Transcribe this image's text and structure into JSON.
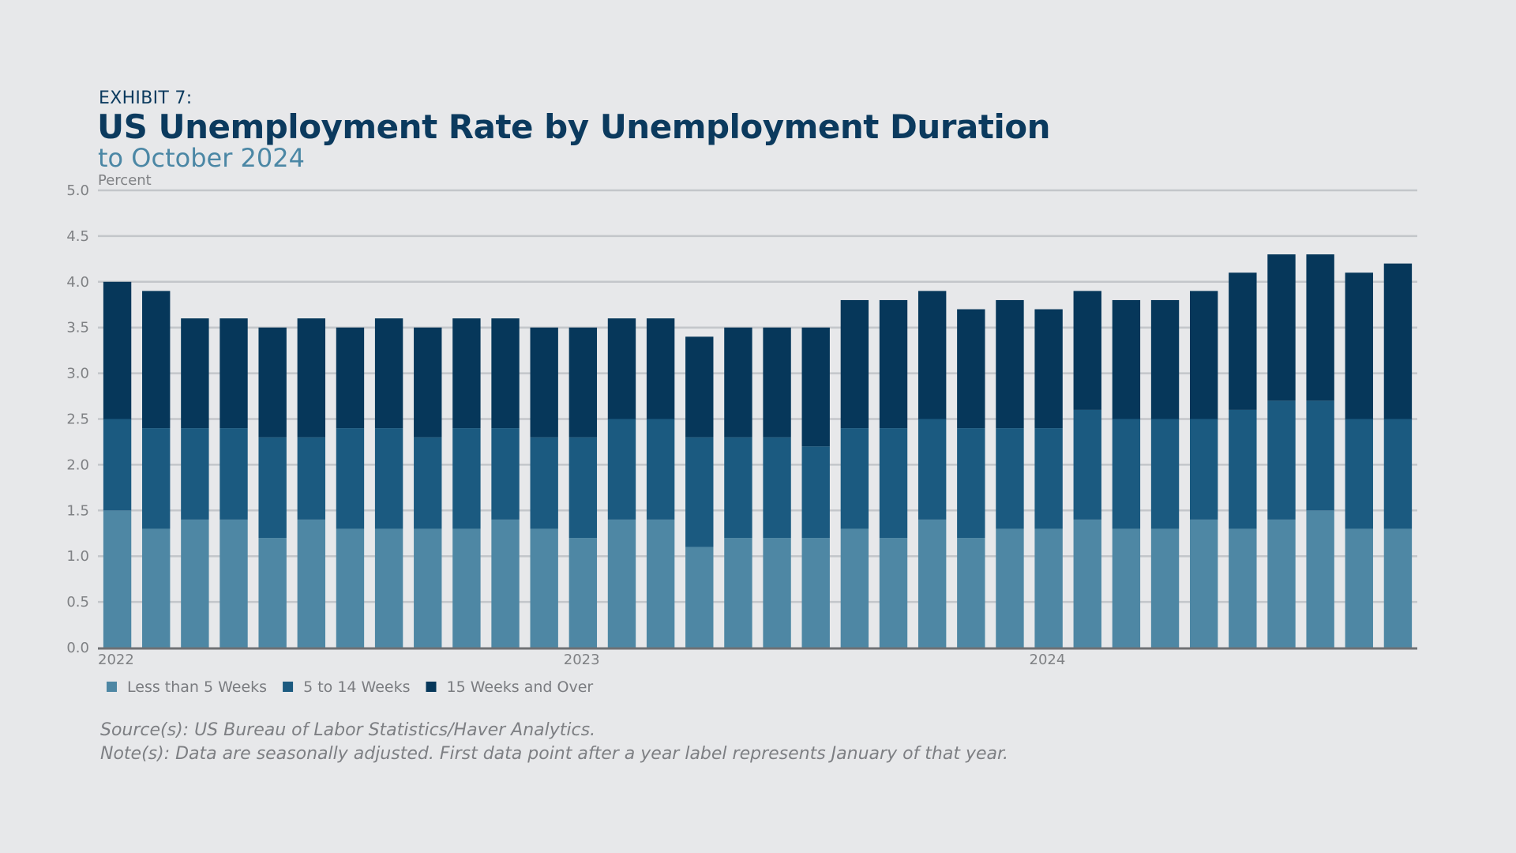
{
  "header": {
    "exhibit": "EXHIBIT 7:",
    "title": "US Unemployment Rate by Unemployment Duration",
    "subtitle": "to October 2024"
  },
  "footer": {
    "source": "Source(s): US Bureau of Labor Statistics/Haver Analytics.",
    "note": "Note(s): Data are seasonally adjusted. First data point after a year label represents January of that year."
  },
  "colors": {
    "background": "#e7e8ea",
    "less_than_5": "#4e87a4",
    "five_to_14": "#1b5a80",
    "fifteen_plus": "#06375a",
    "gridline": "#c3c6ca",
    "axis": "#6f7174"
  },
  "chart_data": {
    "type": "bar",
    "stacked": true,
    "ylabel": "Percent",
    "ylim": [
      0,
      5
    ],
    "yticks": [
      "0.0",
      "0.5",
      "1.0",
      "1.5",
      "2.0",
      "2.5",
      "3.0",
      "3.5",
      "4.0",
      "4.5",
      "5.0"
    ],
    "x_labels": [
      {
        "label": "2022",
        "index": 0
      },
      {
        "label": "2023",
        "index": 12
      },
      {
        "label": "2024",
        "index": 24
      }
    ],
    "categories": [
      "2022-01",
      "2022-02",
      "2022-03",
      "2022-04",
      "2022-05",
      "2022-06",
      "2022-07",
      "2022-08",
      "2022-09",
      "2022-10",
      "2022-11",
      "2022-12",
      "2023-01",
      "2023-02",
      "2023-03",
      "2023-04",
      "2023-05",
      "2023-06",
      "2023-07",
      "2023-08",
      "2023-09",
      "2023-10",
      "2023-11",
      "2023-12",
      "2024-01",
      "2024-02",
      "2024-03",
      "2024-04",
      "2024-05",
      "2024-06",
      "2024-07",
      "2024-08",
      "2024-09",
      "2024-10"
    ],
    "series": [
      {
        "name": "Less than 5 Weeks",
        "color": "#4e87a4",
        "values": [
          1.5,
          1.3,
          1.4,
          1.4,
          1.2,
          1.4,
          1.3,
          1.3,
          1.3,
          1.3,
          1.4,
          1.3,
          1.2,
          1.4,
          1.4,
          1.1,
          1.2,
          1.2,
          1.2,
          1.3,
          1.2,
          1.4,
          1.2,
          1.3,
          1.3,
          1.4,
          1.3,
          1.3,
          1.4,
          1.3,
          1.4,
          1.5,
          1.3,
          1.3
        ]
      },
      {
        "name": "5 to 14 Weeks",
        "color": "#1b5a80",
        "values": [
          1.0,
          1.1,
          1.0,
          1.0,
          1.1,
          0.9,
          1.1,
          1.1,
          1.0,
          1.1,
          1.0,
          1.0,
          1.1,
          1.1,
          1.1,
          1.2,
          1.1,
          1.1,
          1.0,
          1.1,
          1.2,
          1.1,
          1.2,
          1.1,
          1.1,
          1.2,
          1.2,
          1.2,
          1.1,
          1.3,
          1.3,
          1.2,
          1.2,
          1.2
        ]
      },
      {
        "name": "15 Weeks and Over",
        "color": "#06375a",
        "values": [
          1.5,
          1.5,
          1.2,
          1.2,
          1.2,
          1.3,
          1.1,
          1.2,
          1.2,
          1.2,
          1.2,
          1.2,
          1.2,
          1.1,
          1.1,
          1.1,
          1.2,
          1.2,
          1.3,
          1.4,
          1.4,
          1.4,
          1.3,
          1.4,
          1.3,
          1.3,
          1.3,
          1.3,
          1.4,
          1.5,
          1.6,
          1.6,
          1.6,
          1.7
        ]
      }
    ],
    "legend_position": "bottom-left",
    "grid": true
  }
}
